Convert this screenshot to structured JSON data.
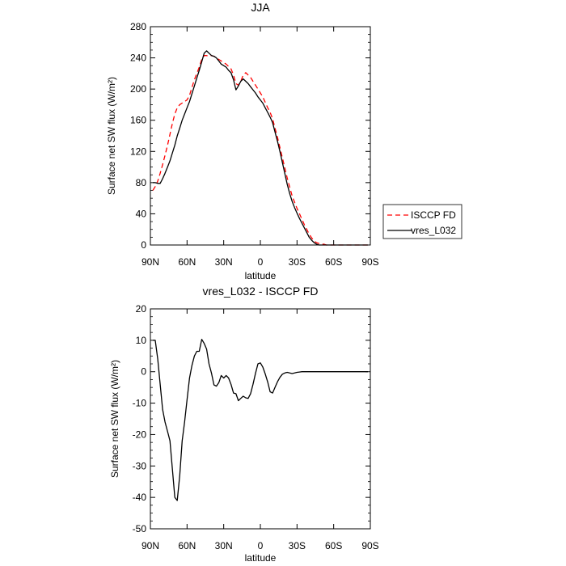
{
  "chart_data": [
    {
      "type": "line",
      "title": "JJA",
      "xlabel": "latitude",
      "ylabel": "Surface net SW flux (W/m²)",
      "ylim": [
        0,
        280
      ],
      "yticks": [
        0,
        40,
        80,
        120,
        160,
        200,
        240,
        280
      ],
      "xlim": [
        90,
        -90
      ],
      "xticks": [
        90,
        60,
        30,
        0,
        -30,
        -60,
        -90
      ],
      "xticklabels": [
        "90N",
        "60N",
        "30N",
        "0",
        "30S",
        "60S",
        "90S"
      ],
      "legend": {
        "placement": "right",
        "entries": [
          "ISCCP FD",
          "vres_L032"
        ]
      },
      "series": [
        {
          "name": "ISCCP FD",
          "color": "#ff0000",
          "dash": true,
          "x": [
            88,
            86,
            84,
            82,
            80,
            78,
            76,
            74,
            72,
            70,
            68,
            66,
            64,
            62,
            60,
            58,
            56,
            54,
            52,
            50,
            48,
            46,
            44,
            42,
            40,
            38,
            36,
            34,
            32,
            30,
            28,
            26,
            24,
            22,
            20,
            18,
            16,
            14,
            12,
            10,
            8,
            6,
            4,
            2,
            0,
            -2,
            -4,
            -6,
            -8,
            -10,
            -12,
            -14,
            -16,
            -18,
            -20,
            -22,
            -24,
            -26,
            -28,
            -30,
            -32,
            -34,
            -36,
            -38,
            -40,
            -42,
            -44,
            -46,
            -48,
            -50,
            -52,
            -54,
            -56,
            -58,
            -60,
            -62,
            -64,
            -66,
            -68,
            -70,
            -72,
            -74,
            -76,
            -78,
            -80,
            -82,
            -84,
            -86,
            -88
          ],
          "values": [
            70,
            75,
            82,
            92,
            103,
            115,
            128,
            142,
            156,
            168,
            176,
            180,
            182,
            184,
            186,
            192,
            202,
            212,
            220,
            228,
            238,
            243,
            243,
            242,
            243,
            242,
            240,
            238,
            236,
            234,
            232,
            229,
            226,
            218,
            207,
            205,
            210,
            218,
            221,
            218,
            215,
            210,
            205,
            200,
            195,
            190,
            183,
            176,
            170,
            162,
            150,
            138,
            125,
            112,
            99,
            86,
            74,
            63,
            55,
            47,
            40,
            33,
            26,
            20,
            14,
            9,
            5,
            3,
            2,
            1,
            1,
            0,
            0,
            0,
            0,
            0,
            0,
            0,
            0,
            0,
            0,
            0,
            0,
            0,
            0,
            0,
            0,
            0,
            0
          ]
        },
        {
          "name": "vres_L032",
          "color": "#000000",
          "dash": false,
          "x": [
            88,
            86,
            84,
            82,
            80,
            78,
            76,
            74,
            72,
            70,
            68,
            66,
            64,
            62,
            60,
            58,
            56,
            54,
            52,
            50,
            48,
            46,
            44,
            42,
            40,
            38,
            36,
            34,
            32,
            30,
            28,
            26,
            24,
            22,
            20,
            18,
            16,
            14,
            12,
            10,
            8,
            6,
            4,
            2,
            0,
            -2,
            -4,
            -6,
            -8,
            -10,
            -12,
            -14,
            -16,
            -18,
            -20,
            -22,
            -24,
            -26,
            -28,
            -30,
            -32,
            -34,
            -36,
            -38,
            -40,
            -42,
            -44,
            -46,
            -48,
            -50,
            -52,
            -54,
            -56,
            -58,
            -60,
            -62,
            -64,
            -66,
            -68,
            -70,
            -72,
            -74,
            -76,
            -78,
            -80,
            -82,
            -84,
            -86,
            -88
          ],
          "values": [
            80,
            80,
            79,
            79,
            85,
            92,
            100,
            108,
            118,
            128,
            140,
            150,
            160,
            168,
            176,
            184,
            194,
            204,
            214,
            224,
            235,
            246,
            249,
            246,
            243,
            242,
            240,
            236,
            232,
            230,
            228,
            224,
            221,
            212,
            199,
            204,
            210,
            213,
            210,
            207,
            203,
            199,
            195,
            190,
            186,
            182,
            176,
            170,
            164,
            157,
            145,
            133,
            120,
            106,
            92,
            78,
            66,
            56,
            48,
            41,
            34,
            28,
            22,
            16,
            10,
            6,
            3,
            1,
            0,
            0,
            0,
            0,
            0,
            0,
            0,
            0,
            0,
            0,
            0,
            0,
            0,
            0,
            0,
            0,
            0,
            0,
            0,
            0,
            0
          ]
        }
      ]
    },
    {
      "type": "line",
      "title": "vres_L032 - ISCCP FD",
      "xlabel": "latitude",
      "ylabel": "Surface net SW flux (W/m²)",
      "ylim": [
        -50,
        20
      ],
      "yticks": [
        -50,
        -40,
        -30,
        -20,
        -10,
        0,
        10,
        20
      ],
      "xlim": [
        90,
        -90
      ],
      "xticks": [
        90,
        60,
        30,
        0,
        -30,
        -60,
        -90
      ],
      "xticklabels": [
        "90N",
        "60N",
        "30N",
        "0",
        "30S",
        "60S",
        "90S"
      ],
      "series": [
        {
          "name": "vres_L032 - ISCCP FD",
          "color": "#000000",
          "dash": false,
          "x": [
            88,
            86,
            84,
            82,
            80,
            78,
            76,
            74,
            72,
            70,
            68,
            66,
            64,
            62,
            60,
            58,
            56,
            54,
            52,
            50,
            48,
            46,
            44,
            42,
            40,
            38,
            36,
            34,
            32,
            30,
            28,
            26,
            24,
            22,
            20,
            18,
            16,
            14,
            12,
            10,
            8,
            6,
            4,
            2,
            0,
            -2,
            -4,
            -6,
            -8,
            -10,
            -12,
            -14,
            -16,
            -18,
            -20,
            -22,
            -24,
            -26,
            -28,
            -30,
            -32,
            -34,
            -36,
            -38,
            -40,
            -42,
            -44,
            -46,
            -48,
            -50,
            -52,
            -54,
            -56,
            -58,
            -60,
            -62,
            -64,
            -66,
            -68,
            -70,
            -72,
            -74,
            -76,
            -78,
            -80,
            -82,
            -84,
            -86,
            -88
          ],
          "values": [
            10,
            10,
            4,
            -4,
            -12,
            -16,
            -19,
            -22,
            -31,
            -40,
            -41,
            -33,
            -22,
            -16,
            -9,
            -2,
            2,
            5,
            6.5,
            6.5,
            10.3,
            9,
            7.2,
            2.5,
            -0.5,
            -4.2,
            -4.6,
            -3.5,
            -1.2,
            -2,
            -1.2,
            -2,
            -4,
            -6.8,
            -7,
            -9.2,
            -8.5,
            -7.8,
            -8.3,
            -8.5,
            -7,
            -4,
            -0.5,
            2.5,
            2.8,
            1.5,
            -0.7,
            -3.3,
            -6.4,
            -6.8,
            -5,
            -3.2,
            -1.8,
            -0.8,
            -0.4,
            -0.2,
            -0.4,
            -0.6,
            -0.4,
            -0.2,
            -0.1,
            0,
            0,
            0,
            0,
            0,
            0,
            0,
            0,
            0,
            0,
            0,
            0,
            0,
            0,
            0,
            0,
            0,
            0,
            0,
            0,
            0,
            0,
            0,
            0,
            0,
            0,
            0,
            0
          ]
        }
      ]
    }
  ]
}
